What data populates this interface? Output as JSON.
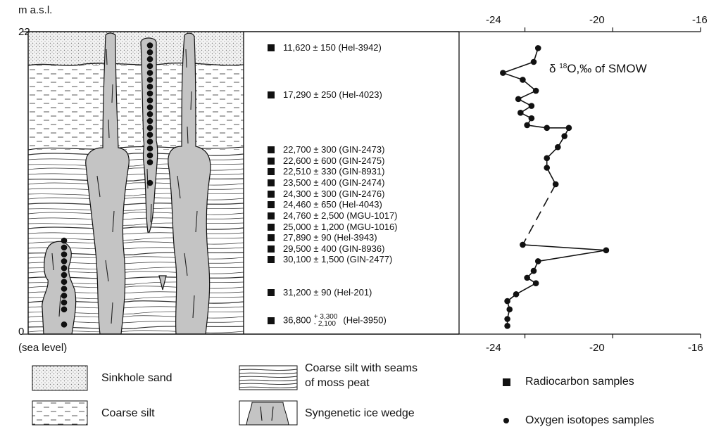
{
  "left_axis": {
    "unit_label": "m a.s.l.",
    "top_tick": "22",
    "bottom_tick": "0",
    "bottom_note": "(sea level)",
    "range": [
      0,
      22
    ]
  },
  "dates": [
    {
      "value": "11,620 ± 150 (Hel-3942)",
      "height_m": 20.8
    },
    {
      "value": "17,290 ± 250 (Hel-4023)",
      "height_m": 17.4
    },
    {
      "value": "22,700 ± 300 (GIN-2473)",
      "height_m": 13.4
    },
    {
      "value": "22,600 ± 600 (GIN-2475)",
      "height_m": 12.6
    },
    {
      "value": "22,510 ± 330 (GIN-8931)",
      "height_m": 11.8
    },
    {
      "value": "23,500 ± 400 (GIN-2474)",
      "height_m": 11.0
    },
    {
      "value": "24,300 ± 300 (GIN-2476)",
      "height_m": 10.2
    },
    {
      "value": "24,460 ± 650 (Hel-4043)",
      "height_m": 9.4
    },
    {
      "value": "24,760 ± 2,500 (MGU-1017)",
      "height_m": 8.6
    },
    {
      "value": "25,000 ± 1,200 (MGU-1016)",
      "height_m": 7.8
    },
    {
      "value": "27,890 ± 90 (Hel-3943)",
      "height_m": 7.0
    },
    {
      "value": "29,500 ± 400 (GIN-8936)",
      "height_m": 6.2
    },
    {
      "value": "30,100 ± 1,500 (GIN-2477)",
      "height_m": 5.4
    },
    {
      "value": "31,200 ± 90 (Hel-201)",
      "height_m": 3.0
    },
    {
      "value": "36,800",
      "plus": "+ 3,300",
      "minus": "- 2,100",
      "lab": "(Hel-3950)",
      "height_m": 1.0
    }
  ],
  "chart_data": {
    "type": "line",
    "title": "δ 18O,‰ of SMOW",
    "x_ticks_top": [
      "-24",
      "-20",
      "-16"
    ],
    "x_ticks_bottom": [
      "-24",
      "-20",
      "-16"
    ],
    "xlim": [
      -27,
      -16
    ],
    "ylim": [
      0,
      22
    ],
    "series": [
      {
        "points": [
          {
            "x": -23.4,
            "y": 20.8
          },
          {
            "x": -23.6,
            "y": 19.8
          },
          {
            "x": -25.0,
            "y": 19.0
          },
          {
            "x": -24.1,
            "y": 18.5
          },
          {
            "x": -23.5,
            "y": 17.7
          },
          {
            "x": -24.3,
            "y": 17.1
          },
          {
            "x": -23.7,
            "y": 16.6
          },
          {
            "x": -24.2,
            "y": 16.1
          },
          {
            "x": -23.7,
            "y": 15.7
          },
          {
            "x": -23.9,
            "y": 15.2
          },
          {
            "x": -23.0,
            "y": 15.0
          },
          {
            "x": -22.0,
            "y": 15.0
          },
          {
            "x": -22.2,
            "y": 14.4
          },
          {
            "x": -22.5,
            "y": 13.6
          },
          {
            "x": -23.0,
            "y": 12.8
          },
          {
            "x": -23.0,
            "y": 12.1
          },
          {
            "x": -22.6,
            "y": 10.9
          }
        ]
      },
      {
        "style": "dashed",
        "points": [
          {
            "x": -22.6,
            "y": 10.9
          },
          {
            "x": -24.1,
            "y": 6.5
          }
        ]
      },
      {
        "points": [
          {
            "x": -24.1,
            "y": 6.5
          },
          {
            "x": -20.3,
            "y": 6.1
          },
          {
            "x": -23.4,
            "y": 5.3
          },
          {
            "x": -23.6,
            "y": 4.6
          },
          {
            "x": -23.9,
            "y": 4.1
          },
          {
            "x": -23.5,
            "y": 3.7
          },
          {
            "x": -24.4,
            "y": 2.9
          },
          {
            "x": -24.8,
            "y": 2.4
          },
          {
            "x": -24.7,
            "y": 1.8
          },
          {
            "x": -24.8,
            "y": 1.1
          },
          {
            "x": -24.8,
            "y": 0.6
          }
        ]
      }
    ]
  },
  "profile": {
    "oxygen_samples_center_wedge": [
      21.0,
      20.5,
      20.0,
      19.5,
      19.0,
      18.5,
      18.0,
      17.5,
      17.0,
      16.5,
      16.0,
      15.5,
      15.0,
      14.5,
      14.0,
      13.5,
      13.0,
      12.5,
      11.0
    ],
    "oxygen_samples_left_wedge": [
      6.8,
      6.3,
      5.8,
      5.3,
      4.8,
      4.3,
      3.8,
      3.3,
      2.8,
      2.3,
      1.8,
      0.7
    ]
  },
  "legend": {
    "sinkhole_sand": "Sinkhole sand",
    "coarse_silt": "Coarse silt",
    "silt_peat_line1": "Coarse silt with seams",
    "silt_peat_line2": "of moss peat",
    "ice_wedge": "Syngenetic ice wedge",
    "radiocarbon": "Radiocarbon samples",
    "oxygen": "Oxygen isotopes samples"
  }
}
